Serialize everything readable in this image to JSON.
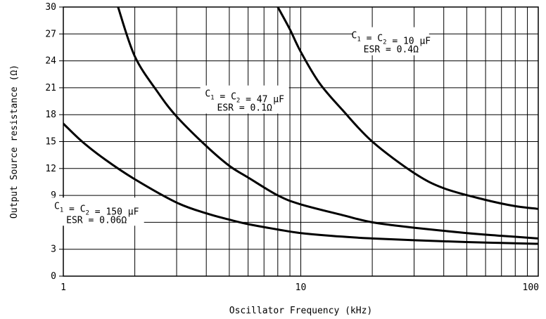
{
  "chart_data": {
    "type": "line",
    "xlabel": "Oscillator Frequency (kHz)",
    "ylabel": "Output Source resistance (Ω)",
    "xscale": "log",
    "xlim": [
      1,
      100
    ],
    "ylim": [
      0,
      30
    ],
    "grid": true,
    "x_ticks": [
      "1",
      "10",
      "100"
    ],
    "y_ticks": [
      "0",
      "3",
      "6",
      "9",
      "12",
      "15",
      "18",
      "21",
      "24",
      "27",
      "30"
    ],
    "series": [
      {
        "line1": "C1 = C2 = 10 μF",
        "line2": "ESR = 0.4Ω",
        "x": [
          8,
          9,
          10,
          12,
          15,
          20,
          30,
          40,
          60,
          80,
          100
        ],
        "y": [
          30,
          27.5,
          25,
          21.5,
          18.5,
          15,
          11.5,
          9.8,
          8.5,
          7.8,
          7.5
        ]
      },
      {
        "line1": "C1 = C2 = 47 μF",
        "line2": "ESR = 0.1Ω",
        "x": [
          1.7,
          2,
          2.5,
          3,
          4,
          5,
          6,
          8,
          10,
          15,
          20,
          30,
          50,
          70,
          100
        ],
        "y": [
          30,
          24.5,
          20.5,
          17.8,
          14.5,
          12.3,
          11,
          9,
          8,
          6.8,
          6,
          5.4,
          4.8,
          4.5,
          4.2
        ]
      },
      {
        "line1": "C1 = C2 = 150 μF",
        "line2": "ESR = 0.06Ω",
        "x": [
          1,
          1.2,
          1.5,
          2,
          3,
          4,
          5,
          6,
          8,
          10,
          15,
          20,
          30,
          50,
          70,
          100
        ],
        "y": [
          17,
          15,
          13,
          10.8,
          8.2,
          7,
          6.3,
          5.8,
          5.2,
          4.8,
          4.4,
          4.2,
          4,
          3.8,
          3.7,
          3.6
        ]
      }
    ],
    "annotations": [
      {
        "c1": "C",
        "s1": "1",
        "c2": " = C",
        "s2": "2",
        "val": " = 10 μF",
        "esr": "ESR = 0.4Ω"
      },
      {
        "c1": "C",
        "s1": "1",
        "c2": " = C",
        "s2": "2",
        "val": " = 47 μF",
        "esr": "ESR = 0.1Ω"
      },
      {
        "c1": "C",
        "s1": "1",
        "c2": " = C",
        "s2": "2",
        "val": " = 150 μF",
        "esr": "ESR = 0.06Ω"
      }
    ]
  }
}
